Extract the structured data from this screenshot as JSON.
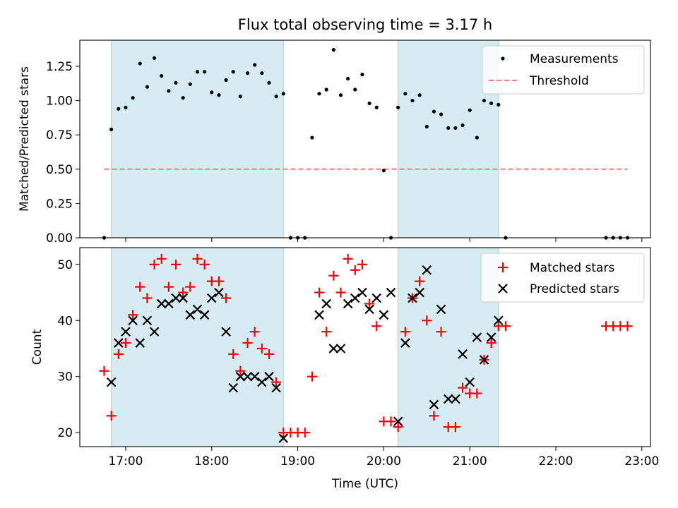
{
  "chart_data": [
    {
      "type": "scatter",
      "title": "Flux total observing time = 3.17 h",
      "xlabel": "",
      "ylabel": "Matched/Predicted stars",
      "xlim": [
        "16:28",
        "23:06"
      ],
      "ylim": [
        0,
        1.44
      ],
      "yticks": [
        0.0,
        0.25,
        0.5,
        0.75,
        1.0,
        1.25
      ],
      "ytick_labels": [
        "0.00",
        "0.25",
        "0.50",
        "0.75",
        "1.00",
        "1.25"
      ],
      "shaded_spans": [
        [
          "16:50",
          "18:50"
        ],
        [
          "20:10",
          "21:20"
        ]
      ],
      "legend": {
        "position": "upper right",
        "entries": [
          {
            "label": "Measurements",
            "marker": "dot",
            "color": "#000000"
          },
          {
            "label": "Threshold",
            "marker": "dashed-line",
            "color": "#f47c7c"
          }
        ]
      },
      "series": [
        {
          "name": "Measurements",
          "marker": "dot",
          "color": "#000000",
          "x": [
            "16:45",
            "16:50",
            "16:55",
            "17:00",
            "17:05",
            "17:10",
            "17:15",
            "17:20",
            "17:25",
            "17:30",
            "17:35",
            "17:40",
            "17:45",
            "17:50",
            "17:55",
            "18:00",
            "18:05",
            "18:10",
            "18:15",
            "18:20",
            "18:25",
            "18:30",
            "18:35",
            "18:40",
            "18:45",
            "18:50",
            "18:55",
            "19:00",
            "19:05",
            "19:10",
            "19:15",
            "19:20",
            "19:25",
            "19:30",
            "19:35",
            "19:40",
            "19:45",
            "19:50",
            "19:55",
            "20:00",
            "20:05",
            "20:10",
            "20:15",
            "20:20",
            "20:25",
            "20:30",
            "20:35",
            "20:40",
            "20:45",
            "20:50",
            "20:55",
            "21:00",
            "21:05",
            "21:10",
            "21:15",
            "21:20",
            "21:25",
            "22:35",
            "22:40",
            "22:45",
            "22:50"
          ],
          "y": [
            0.0,
            0.79,
            0.94,
            0.95,
            1.02,
            1.27,
            1.1,
            1.31,
            1.18,
            1.07,
            1.13,
            1.02,
            1.12,
            1.21,
            1.21,
            1.06,
            1.04,
            1.15,
            1.21,
            1.03,
            1.2,
            1.26,
            1.2,
            1.13,
            1.03,
            1.05,
            0.0,
            0.0,
            0.0,
            0.73,
            1.05,
            1.08,
            1.37,
            1.04,
            1.16,
            1.08,
            1.19,
            0.98,
            0.95,
            0.49,
            0.0,
            0.95,
            1.05,
            1.0,
            1.04,
            0.81,
            0.92,
            0.9,
            0.8,
            0.8,
            0.82,
            0.93,
            0.73,
            1.0,
            0.98,
            0.97,
            0.0,
            0.0,
            0.0,
            0.0,
            0.0
          ]
        },
        {
          "name": "Threshold",
          "type": "line",
          "style": "dashed",
          "color": "#f47c7c",
          "x": [
            "16:45",
            "22:50"
          ],
          "y": [
            0.5,
            0.5
          ]
        }
      ]
    },
    {
      "type": "scatter",
      "title": "",
      "xlabel": "Time (UTC)",
      "ylabel": "Count",
      "xlim": [
        "16:28",
        "23:06"
      ],
      "ylim": [
        17.5,
        53
      ],
      "yticks": [
        20,
        30,
        40,
        50
      ],
      "ytick_labels": [
        "20",
        "30",
        "40",
        "50"
      ],
      "xtick_labels": [
        "17:00",
        "18:00",
        "19:00",
        "20:00",
        "21:00",
        "22:00",
        "23:00"
      ],
      "shaded_spans": [
        [
          "16:50",
          "18:50"
        ],
        [
          "20:10",
          "21:20"
        ]
      ],
      "legend": {
        "position": "upper right",
        "entries": [
          {
            "label": "Matched stars",
            "marker": "plus",
            "color": "#ff0000"
          },
          {
            "label": "Predicted stars",
            "marker": "x",
            "color": "#000000"
          }
        ]
      },
      "series": [
        {
          "name": "Matched stars",
          "marker": "plus",
          "color": "#ff0000",
          "x": [
            "16:45",
            "16:50",
            "16:55",
            "17:00",
            "17:05",
            "17:10",
            "17:15",
            "17:20",
            "17:25",
            "17:30",
            "17:35",
            "17:40",
            "17:45",
            "17:50",
            "17:55",
            "18:00",
            "18:05",
            "18:10",
            "18:15",
            "18:20",
            "18:25",
            "18:30",
            "18:35",
            "18:40",
            "18:45",
            "18:50",
            "18:55",
            "19:00",
            "19:05",
            "19:10",
            "19:15",
            "19:20",
            "19:25",
            "19:30",
            "19:35",
            "19:40",
            "19:45",
            "19:50",
            "19:55",
            "20:00",
            "20:05",
            "20:10",
            "20:15",
            "20:20",
            "20:25",
            "20:30",
            "20:35",
            "20:40",
            "20:45",
            "20:50",
            "20:55",
            "21:00",
            "21:05",
            "21:10",
            "21:15",
            "21:20",
            "21:25",
            "22:35",
            "22:40",
            "22:45",
            "22:50"
          ],
          "y": [
            31,
            23,
            34,
            36,
            41,
            46,
            44,
            50,
            51,
            46,
            50,
            45,
            46,
            51,
            50,
            47,
            47,
            44,
            34,
            31,
            36,
            38,
            35,
            34,
            29,
            20,
            20,
            20,
            20,
            30,
            45,
            38,
            48,
            45,
            51,
            49,
            50,
            43,
            39,
            22,
            22,
            21,
            38,
            44,
            47,
            40,
            23,
            38,
            21,
            21,
            28,
            27,
            27,
            33,
            36,
            39,
            39,
            39,
            39,
            39,
            39
          ]
        },
        {
          "name": "Predicted stars",
          "marker": "x",
          "color": "#000000",
          "x": [
            "16:50",
            "16:55",
            "17:00",
            "17:05",
            "17:10",
            "17:15",
            "17:20",
            "17:25",
            "17:30",
            "17:35",
            "17:40",
            "17:45",
            "17:50",
            "17:55",
            "18:00",
            "18:05",
            "18:10",
            "18:15",
            "18:20",
            "18:25",
            "18:30",
            "18:35",
            "18:40",
            "18:45",
            "18:50",
            "19:15",
            "19:20",
            "19:25",
            "19:30",
            "19:35",
            "19:40",
            "19:45",
            "19:50",
            "19:55",
            "20:00",
            "20:05",
            "20:10",
            "20:15",
            "20:20",
            "20:25",
            "20:30",
            "20:35",
            "20:40",
            "20:45",
            "20:50",
            "20:55",
            "21:00",
            "21:05",
            "21:10",
            "21:15",
            "21:20"
          ],
          "y": [
            29,
            36,
            38,
            40,
            36,
            40,
            38,
            43,
            43,
            44,
            44,
            41,
            42,
            41,
            44,
            45,
            38,
            28,
            30,
            30,
            30,
            29,
            30,
            28,
            19,
            41,
            43,
            35,
            35,
            43,
            44,
            45,
            42,
            44,
            41,
            45,
            22,
            36,
            44,
            45,
            49,
            25,
            42,
            26,
            26,
            34,
            29,
            37,
            33,
            37,
            40
          ]
        }
      ]
    }
  ]
}
